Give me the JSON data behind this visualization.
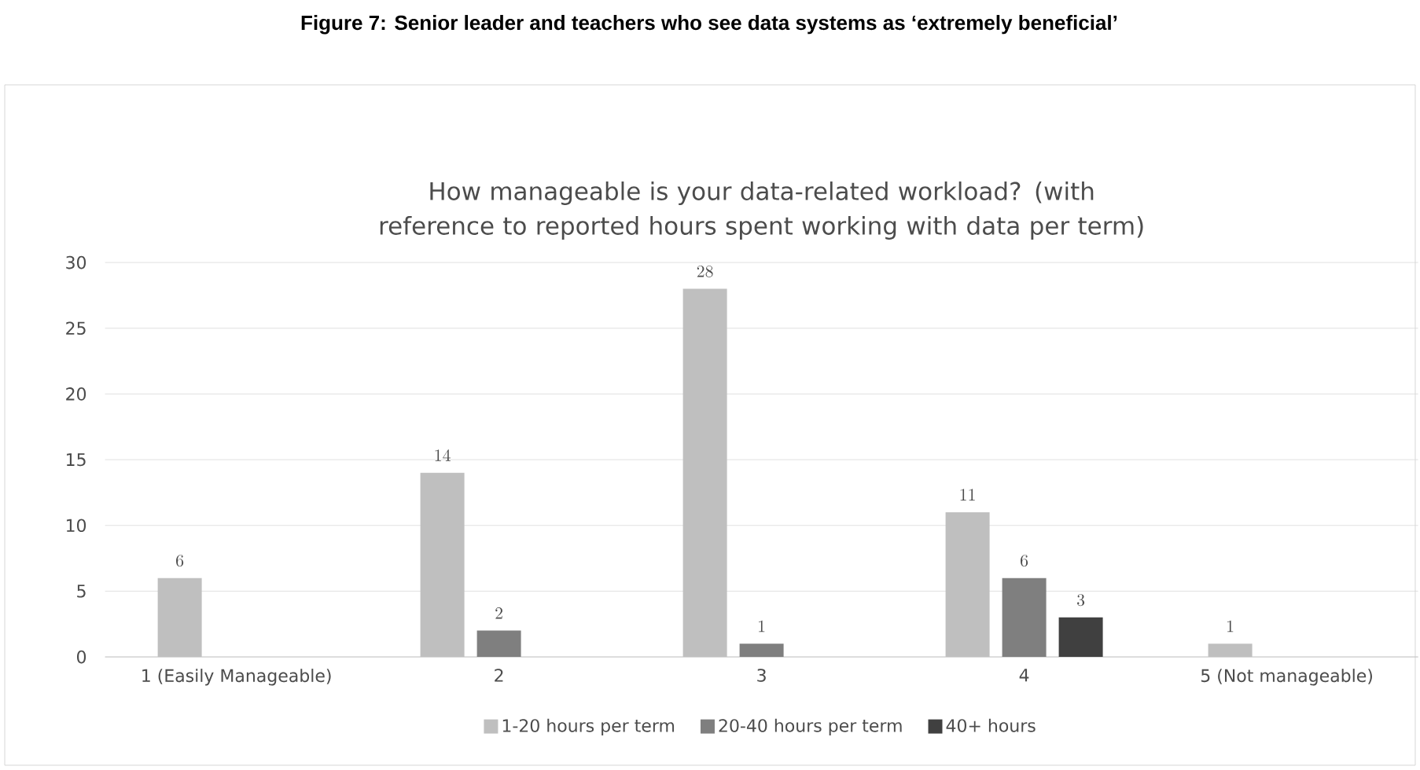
{
  "chart_data": {
    "type": "bar",
    "title": "How manageable is your data-related workload? (with reference to reported hours spent working with data per term)",
    "annotations": [
      "Figure 7: Senior leader and teachers who see data systems as ‘extremely beneficial’"
    ],
    "categories": [
      "1 (Easily Manageable)",
      "2",
      "3",
      "4",
      "5 (Not manageable)"
    ],
    "series": [
      {
        "name": "1-20 hours per term",
        "color": "#bfbfbf",
        "values": [
          6,
          14,
          28,
          11,
          1
        ]
      },
      {
        "name": "20-40 hours per term",
        "color": "#7f7f7f",
        "values": [
          null,
          2,
          1,
          6,
          null
        ]
      },
      {
        "name": "40+ hours",
        "color": "#404040",
        "values": [
          null,
          null,
          null,
          3,
          null
        ]
      }
    ],
    "ylim": [
      0,
      30
    ],
    "yticks": [
      0,
      5,
      10,
      15,
      20,
      25,
      30
    ],
    "grid": "y",
    "legend": "bottom",
    "data_labels": true
  }
}
